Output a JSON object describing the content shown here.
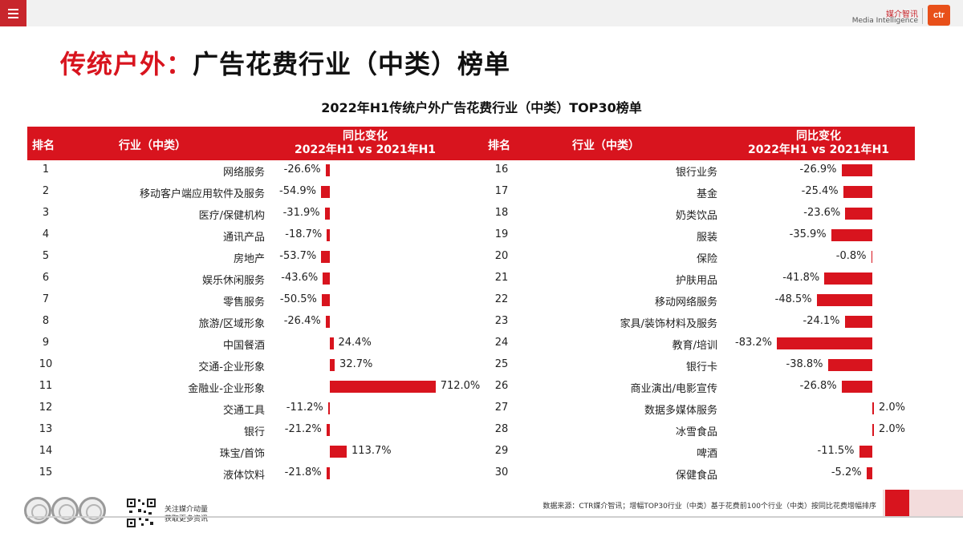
{
  "header": {
    "logo_cn": "媒介智讯",
    "logo_en": "Media Intelligence",
    "logo_mark": "ctr"
  },
  "page_title": {
    "red": "传统户外：",
    "black": "广告花费行业（中类）榜单"
  },
  "table_header": {
    "rank": "排名",
    "industry": "行业（中类）",
    "change_line1": "同比变化",
    "change_line2": "2022年H1 vs 2021年H1"
  },
  "footer": {
    "source": "数据来源：CTR媒介智讯；增幅TOP30行业（中类）基于花费前100个行业（中类）按同比花费增幅排序",
    "follow_line1": "关注媒介动量",
    "follow_line2": "获取更多资讯"
  },
  "colors": {
    "accent": "#d8141e",
    "menu": "#c8262c",
    "brand_mark": "#e8501a"
  },
  "chart_data": {
    "type": "bar",
    "title": "2022年H1传统户外广告花费行业（中类）TOP30榜单",
    "unit": "%",
    "panels": [
      {
        "ranks": [
          1,
          2,
          3,
          4,
          5,
          6,
          7,
          8,
          9,
          10,
          11,
          12,
          13,
          14,
          15
        ],
        "categories": [
          "网络服务",
          "移动客户端应用软件及服务",
          "医疗/保健机构",
          "通讯产品",
          "房地产",
          "娱乐休闲服务",
          "零售服务",
          "旅游/区域形象",
          "中国餐酒",
          "交通-企业形象",
          "金融业-企业形象",
          "交通工具",
          "银行",
          "珠宝/首饰",
          "液体饮料"
        ],
        "values": [
          -26.6,
          -54.9,
          -31.9,
          -18.7,
          -53.7,
          -43.6,
          -50.5,
          -26.4,
          24.4,
          32.7,
          712.0,
          -11.2,
          -21.2,
          113.7,
          -21.8
        ],
        "labels": [
          "-26.6%",
          "-54.9%",
          "-31.9%",
          "-18.7%",
          "-53.7%",
          "-43.6%",
          "-50.5%",
          "-26.4%",
          "24.4%",
          "32.7%",
          "712.0%",
          "-11.2%",
          "-21.2%",
          "113.7%",
          "-21.8%"
        ]
      },
      {
        "ranks": [
          16,
          17,
          18,
          19,
          20,
          21,
          22,
          23,
          24,
          25,
          26,
          27,
          28,
          29,
          30
        ],
        "categories": [
          "银行业务",
          "基金",
          "奶类饮品",
          "服装",
          "保险",
          "护肤用品",
          "移动网络服务",
          "家具/装饰材料及服务",
          "教育/培训",
          "银行卡",
          "商业演出/电影宣传",
          "数据多媒体服务",
          "冰雪食品",
          "啤酒",
          "保健食品"
        ],
        "values": [
          -26.9,
          -25.4,
          -23.6,
          -35.9,
          -0.8,
          -41.8,
          -48.5,
          -24.1,
          -83.2,
          -38.8,
          -26.8,
          2.0,
          2.0,
          -11.5,
          -5.2
        ],
        "labels": [
          "-26.9%",
          "-25.4%",
          "-23.6%",
          "-35.9%",
          "-0.8%",
          "-41.8%",
          "-48.5%",
          "-24.1%",
          "-83.2%",
          "-38.8%",
          "-26.8%",
          "2.0%",
          "2.0%",
          "-11.5%",
          "-5.2%"
        ]
      }
    ]
  }
}
